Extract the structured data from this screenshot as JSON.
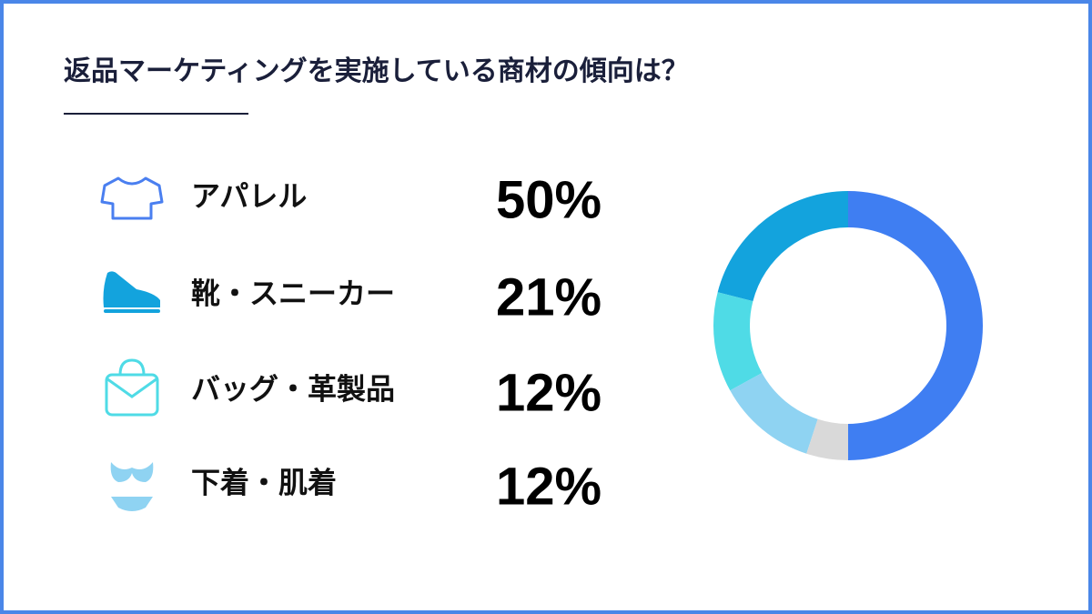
{
  "chart_data": {
    "type": "donut",
    "title": "返品マーケティングを実施している商材の傾向は？",
    "categories": [
      "アパレル",
      "靴・スニーカー",
      "バッグ・革製品",
      "下着・肌着",
      null
    ],
    "values": [
      50,
      21,
      12,
      12,
      5
    ],
    "value_labels": [
      "50%",
      "21%",
      "12%",
      "12%",
      null
    ],
    "colors": [
      "#3f7ef2",
      "#13a3dd",
      "#4fdbe6",
      "#8fd3f2",
      "#d9d9d9"
    ],
    "start_angle": 180,
    "direction": "counterclockwise"
  }
}
